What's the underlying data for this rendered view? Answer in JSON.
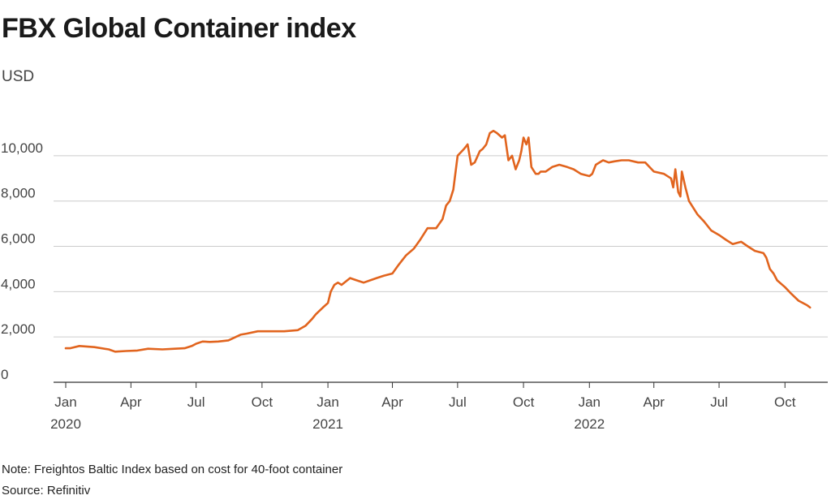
{
  "title": "FBX Global Container index",
  "unit_label": "USD",
  "note": "Note: Freightos Baltic Index based on cost for 40-foot container",
  "source": "Source: Refinitiv",
  "colors": {
    "line": "#e1641e",
    "grid": "#cccccc",
    "axis": "#333333",
    "text": "#444444"
  },
  "chart_data": {
    "type": "line",
    "title": "FBX Global Container index",
    "ylabel": "USD",
    "ylim": [
      0,
      11500
    ],
    "yticks": [
      0,
      2000,
      4000,
      6000,
      8000,
      10000
    ],
    "ytick_labels": [
      "0",
      "2,000",
      "4,000",
      "6,000",
      "8,000",
      "10,000"
    ],
    "xlim": [
      "2020-01-01",
      "2022-11-15"
    ],
    "xticks": [
      {
        "date": "2020-01-01",
        "label": "Jan",
        "year": "2020"
      },
      {
        "date": "2020-04-01",
        "label": "Apr",
        "year": ""
      },
      {
        "date": "2020-07-01",
        "label": "Jul",
        "year": ""
      },
      {
        "date": "2020-10-01",
        "label": "Oct",
        "year": ""
      },
      {
        "date": "2021-01-01",
        "label": "Jan",
        "year": "2021"
      },
      {
        "date": "2021-04-01",
        "label": "Apr",
        "year": ""
      },
      {
        "date": "2021-07-01",
        "label": "Jul",
        "year": ""
      },
      {
        "date": "2021-10-01",
        "label": "Oct",
        "year": ""
      },
      {
        "date": "2022-01-01",
        "label": "Jan",
        "year": "2022"
      },
      {
        "date": "2022-04-01",
        "label": "Apr",
        "year": ""
      },
      {
        "date": "2022-07-01",
        "label": "Jul",
        "year": ""
      },
      {
        "date": "2022-10-01",
        "label": "Oct",
        "year": ""
      }
    ],
    "grid": true,
    "series": [
      {
        "name": "",
        "x": [
          "2020-01-01",
          "2020-01-07",
          "2020-01-20",
          "2020-02-10",
          "2020-03-01",
          "2020-03-10",
          "2020-03-25",
          "2020-04-10",
          "2020-04-25",
          "2020-05-15",
          "2020-06-01",
          "2020-06-15",
          "2020-06-25",
          "2020-07-01",
          "2020-07-10",
          "2020-07-20",
          "2020-08-01",
          "2020-08-15",
          "2020-09-01",
          "2020-09-10",
          "2020-09-25",
          "2020-10-01",
          "2020-10-10",
          "2020-10-20",
          "2020-11-01",
          "2020-11-20",
          "2020-12-01",
          "2020-12-10",
          "2020-12-15",
          "2020-12-25",
          "2021-01-01",
          "2021-01-05",
          "2021-01-10",
          "2021-01-15",
          "2021-01-20",
          "2021-02-01",
          "2021-02-10",
          "2021-02-20",
          "2021-03-01",
          "2021-03-10",
          "2021-03-20",
          "2021-04-01",
          "2021-04-10",
          "2021-04-20",
          "2021-05-01",
          "2021-05-10",
          "2021-05-20",
          "2021-06-01",
          "2021-06-10",
          "2021-06-15",
          "2021-06-20",
          "2021-06-25",
          "2021-07-01",
          "2021-07-10",
          "2021-07-15",
          "2021-07-20",
          "2021-07-25",
          "2021-08-01",
          "2021-08-05",
          "2021-08-10",
          "2021-08-15",
          "2021-08-20",
          "2021-08-25",
          "2021-09-01",
          "2021-09-05",
          "2021-09-10",
          "2021-09-15",
          "2021-09-20",
          "2021-09-25",
          "2021-09-28",
          "2021-10-01",
          "2021-10-05",
          "2021-10-08",
          "2021-10-12",
          "2021-10-18",
          "2021-10-22",
          "2021-10-25",
          "2021-11-01",
          "2021-11-10",
          "2021-11-20",
          "2021-12-01",
          "2021-12-10",
          "2021-12-20",
          "2022-01-01",
          "2022-01-05",
          "2022-01-10",
          "2022-01-20",
          "2022-01-28",
          "2022-02-05",
          "2022-02-15",
          "2022-02-25",
          "2022-03-10",
          "2022-03-20",
          "2022-04-01",
          "2022-04-15",
          "2022-04-25",
          "2022-04-28",
          "2022-05-01",
          "2022-05-05",
          "2022-05-08",
          "2022-05-10",
          "2022-05-15",
          "2022-05-20",
          "2022-06-01",
          "2022-06-10",
          "2022-06-20",
          "2022-07-01",
          "2022-07-10",
          "2022-07-20",
          "2022-08-01",
          "2022-08-10",
          "2022-08-20",
          "2022-09-01",
          "2022-09-05",
          "2022-09-10",
          "2022-09-15",
          "2022-09-20",
          "2022-10-01",
          "2022-10-10",
          "2022-10-20",
          "2022-11-01",
          "2022-11-05"
        ],
        "values": [
          1500,
          1500,
          1600,
          1550,
          1450,
          1350,
          1380,
          1400,
          1480,
          1450,
          1480,
          1500,
          1600,
          1700,
          1800,
          1780,
          1800,
          1850,
          2100,
          2150,
          2250,
          2250,
          2250,
          2250,
          2250,
          2300,
          2500,
          2800,
          3000,
          3300,
          3500,
          4000,
          4300,
          4400,
          4300,
          4600,
          4500,
          4400,
          4500,
          4600,
          4700,
          4800,
          5200,
          5600,
          5900,
          6300,
          6800,
          6800,
          7200,
          7800,
          8000,
          8500,
          10000,
          10300,
          10500,
          9600,
          9700,
          10200,
          10300,
          10500,
          11000,
          11100,
          11000,
          10800,
          10900,
          9800,
          10000,
          9400,
          9800,
          10200,
          10800,
          10500,
          10800,
          9500,
          9200,
          9200,
          9300,
          9300,
          9500,
          9600,
          9500,
          9400,
          9200,
          9100,
          9200,
          9600,
          9800,
          9700,
          9750,
          9800,
          9800,
          9700,
          9700,
          9300,
          9200,
          9000,
          8600,
          9400,
          8400,
          8200,
          9300,
          8600,
          8000,
          7400,
          7100,
          6700,
          6500,
          6300,
          6100,
          6200,
          6000,
          5800,
          5700,
          5500,
          5000,
          4800,
          4500,
          4200,
          3900,
          3600,
          3400,
          3300
        ]
      }
    ]
  }
}
